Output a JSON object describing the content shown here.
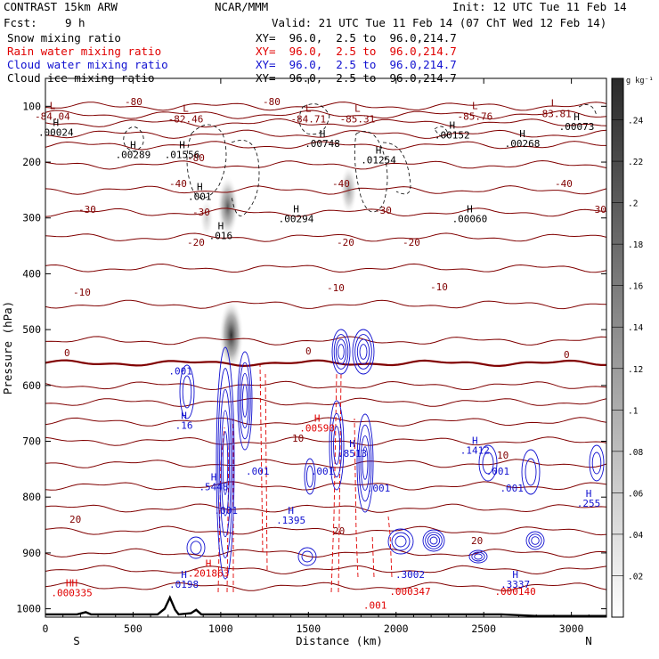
{
  "header": {
    "model": "CONTRAST 15km ARW",
    "org": "NCAR/MMM",
    "init": "Init: 12 UTC Tue 11 Feb 14",
    "fcst_label": "Fcst:",
    "fcst_value": "9 h",
    "valid": "Valid: 21 UTC Tue 11 Feb 14 (07 ChT Wed 12 Feb 14)",
    "fields": [
      {
        "name": "Snow mixing ratio",
        "xy": "XY=  96.0,  2.5 to  96.0,214.7",
        "color": "#000000"
      },
      {
        "name": "Rain water mixing ratio",
        "xy": "XY=  96.0,  2.5 to  96.0,214.7",
        "color": "#e00000"
      },
      {
        "name": "Cloud water mixing ratio",
        "xy": "XY=  96.0,  2.5 to  96.0,214.7",
        "color": "#1010d0"
      },
      {
        "name": "Cloud ice mixing ratio",
        "xy": "XY=  96.0,  2.5 to  96.0,214.7",
        "color": "#000000"
      }
    ]
  },
  "chart_data": {
    "type": "cross-section contour",
    "xlabel": "Distance (km)",
    "ylabel": "Pressure (hPa)",
    "x_ticks": [
      0,
      500,
      1000,
      1500,
      2000,
      2500,
      3000
    ],
    "xlim": [
      0,
      3200
    ],
    "y_ticks": [
      100,
      200,
      300,
      400,
      500,
      600,
      700,
      800,
      900,
      1000
    ],
    "ylim": [
      50,
      1015
    ],
    "x_end_labels": {
      "left": "S",
      "right": "N"
    },
    "colorbar": {
      "unit": "g kg⁻¹",
      "ticks": [
        0.02,
        0.04,
        0.06,
        0.08,
        0.1,
        0.12,
        0.14,
        0.16,
        0.18,
        0.2,
        0.22,
        0.24
      ],
      "tick_labels": [
        ".02",
        ".04",
        ".06",
        ".08",
        ".1",
        ".12",
        ".14",
        ".16",
        ".18",
        ".2",
        ".22",
        ".24"
      ],
      "range": [
        0,
        0.26
      ]
    },
    "temperature_contours": [
      {
        "label": "-80",
        "y": 118
      },
      {
        "label": "-80",
        "y": 132
      },
      {
        "label": "-80",
        "y": 181
      },
      {
        "label": "-40",
        "y": 210
      },
      {
        "label": "-30",
        "y": 247
      },
      {
        "label": "-20",
        "y": 283
      },
      {
        "label": "-10",
        "y": 340
      },
      {
        "label": "0",
        "y": 400
      },
      {
        "label": "10",
        "y": 502
      },
      {
        "label": "20",
        "y": 585
      }
    ],
    "temperature_labels": [
      "-80",
      "-80",
      "-80",
      "-80",
      "-40",
      "-40",
      "-40",
      "-30",
      "-30",
      "-30",
      "-30",
      "-20",
      "-20",
      "-20",
      "-10",
      "-10",
      "-10",
      "0",
      "0",
      "0",
      "10",
      "10",
      "20",
      "20",
      "20"
    ],
    "minima": [
      {
        "label": "L",
        "value": "-84.04",
        "x": 40,
        "p": 105
      },
      {
        "label": "L",
        "value": "-82.46",
        "x": 800,
        "p": 110
      },
      {
        "label": "L",
        "value": "-84.71",
        "x": 1500,
        "p": 110
      },
      {
        "label": "L",
        "value": "-85.31",
        "x": 1780,
        "p": 110
      },
      {
        "label": "L",
        "value": "-85.76",
        "x": 2450,
        "p": 105
      },
      {
        "label": "L",
        "value": "-83.81",
        "x": 2900,
        "p": 100
      }
    ],
    "maxima": [
      {
        "label": "H",
        "value": ".00024",
        "x": 60,
        "p": 135,
        "color": "#000000"
      },
      {
        "label": "H",
        "value": ".00289",
        "x": 500,
        "p": 175,
        "color": "#000000"
      },
      {
        "label": "H",
        "value": ".01556",
        "x": 780,
        "p": 175,
        "color": "#000000"
      },
      {
        "label": "H",
        "value": ".00748",
        "x": 1580,
        "p": 155,
        "color": "#000000"
      },
      {
        "label": "H",
        "value": ".01254",
        "x": 1900,
        "p": 185,
        "color": "#000000"
      },
      {
        "label": "H",
        "value": ".00152",
        "x": 2320,
        "p": 140,
        "color": "#000000"
      },
      {
        "label": "H",
        "value": ".00268",
        "x": 2720,
        "p": 155,
        "color": "#000000"
      },
      {
        "label": "H",
        "value": ".00073",
        "x": 3030,
        "p": 125,
        "color": "#000000"
      },
      {
        "label": "H",
        "value": ".001",
        "x": 880,
        "p": 250,
        "color": "#000000"
      },
      {
        "label": "H",
        "value": ".016",
        "x": 1000,
        "p": 320,
        "color": "#000000"
      },
      {
        "label": "H",
        "value": ".00294",
        "x": 1430,
        "p": 290,
        "color": "#000000"
      },
      {
        "label": "H",
        "value": ".00060",
        "x": 2420,
        "p": 290,
        "color": "#000000"
      },
      {
        "label": "",
        "value": ".001",
        "x": 770,
        "p": 580,
        "color": "#1010d0"
      },
      {
        "label": "H",
        "value": ".16",
        "x": 790,
        "p": 660,
        "color": "#1010d0"
      },
      {
        "label": "H",
        "value": ".00590",
        "x": 1550,
        "p": 665,
        "color": "#e00000"
      },
      {
        "label": "H",
        "value": ".8513",
        "x": 1750,
        "p": 710,
        "color": "#1010d0"
      },
      {
        "label": "H",
        "value": ".1412",
        "x": 2450,
        "p": 705,
        "color": "#1010d0"
      },
      {
        "label": "H",
        "value": ".5448",
        "x": 960,
        "p": 770,
        "color": "#1010d0"
      },
      {
        "label": "",
        "value": ".001",
        "x": 1210,
        "p": 760,
        "color": "#1010d0"
      },
      {
        "label": "",
        "value": ".001",
        "x": 1580,
        "p": 760,
        "color": "#1010d0"
      },
      {
        "label": "",
        "value": ".001",
        "x": 1900,
        "p": 790,
        "color": "#1010d0"
      },
      {
        "label": "",
        "value": ".001",
        "x": 2580,
        "p": 760,
        "color": "#1010d0"
      },
      {
        "label": "",
        "value": ".001",
        "x": 2660,
        "p": 790,
        "color": "#1010d0"
      },
      {
        "label": "H",
        "value": ".1395",
        "x": 1400,
        "p": 830,
        "color": "#1010d0"
      },
      {
        "label": "H",
        "value": ".255",
        "x": 3150,
        "p": 800,
        "color": "#1010d0"
      },
      {
        "label": "",
        "value": ".001",
        "x": 1030,
        "p": 830,
        "color": "#1010d0"
      },
      {
        "label": "H",
        "value": ".0198",
        "x": 790,
        "p": 945,
        "color": "#1010d0"
      },
      {
        "label": "H",
        "value": ".201863",
        "x": 930,
        "p": 925,
        "color": "#e00000"
      },
      {
        "label": "HH",
        "value": ".000335",
        "x": 150,
        "p": 960,
        "color": "#e00000"
      },
      {
        "label": "",
        "value": ".3002",
        "x": 2080,
        "p": 945,
        "color": "#1010d0"
      },
      {
        "label": "",
        "value": ".000347",
        "x": 2080,
        "p": 975,
        "color": "#e00000"
      },
      {
        "label": "H",
        "value": ".3337",
        "x": 2680,
        "p": 945,
        "color": "#1010d0"
      },
      {
        "label": "",
        "value": ".000140",
        "x": 2680,
        "p": 975,
        "color": "#e00000"
      },
      {
        "label": "",
        "value": ".001",
        "x": 1880,
        "p": 1000,
        "color": "#e00000"
      }
    ],
    "snow_maxima": [
      {
        "x": 1040,
        "p": 280,
        "value": 0.2
      },
      {
        "x": 1060,
        "p": 510,
        "value": 0.26
      },
      {
        "x": 1730,
        "p": 250,
        "value": 0.12
      },
      {
        "x": 920,
        "p": 300,
        "value": 0.06
      }
    ],
    "terrain_km": [
      [
        0,
        1010
      ],
      [
        180,
        1010
      ],
      [
        230,
        1006
      ],
      [
        260,
        1010
      ],
      [
        640,
        1010
      ],
      [
        680,
        1000
      ],
      [
        710,
        980
      ],
      [
        740,
        1002
      ],
      [
        760,
        1010
      ],
      [
        830,
        1008
      ],
      [
        860,
        1002
      ],
      [
        890,
        1010
      ],
      [
        2600,
        1010
      ],
      [
        2800,
        1013
      ],
      [
        3200,
        1013
      ]
    ]
  }
}
